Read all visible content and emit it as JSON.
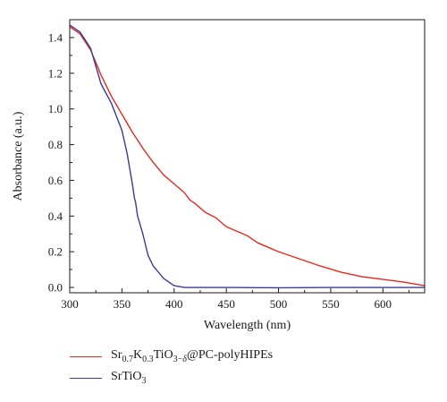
{
  "chart_data": {
    "type": "line",
    "xlabel": "Wavelength (nm)",
    "ylabel": "Absorbance (a.u.)",
    "xlim": [
      300,
      640
    ],
    "ylim": [
      -0.03,
      1.5
    ],
    "x_ticks": [
      300,
      350,
      400,
      450,
      500,
      550,
      600
    ],
    "x_tick_labels": [
      "300",
      "350",
      "400",
      "450",
      "500",
      "550",
      "600"
    ],
    "y_ticks": [
      0.0,
      0.2,
      0.4,
      0.6,
      0.8,
      1.0,
      1.2,
      1.4
    ],
    "y_tick_labels": [
      "0.0",
      "0.2",
      "0.4",
      "0.6",
      "0.8",
      "1.0",
      "1.2",
      "1.4"
    ],
    "legend_position": "below",
    "series": [
      {
        "name": "Sr0.7K0.3TiO3−δ@PC-polyHIPEs",
        "color": "#e8281e",
        "points": [
          [
            300,
            1.46
          ],
          [
            310,
            1.42
          ],
          [
            320,
            1.33
          ],
          [
            330,
            1.19
          ],
          [
            340,
            1.07
          ],
          [
            350,
            0.97
          ],
          [
            360,
            0.87
          ],
          [
            370,
            0.78
          ],
          [
            380,
            0.7
          ],
          [
            390,
            0.63
          ],
          [
            400,
            0.58
          ],
          [
            410,
            0.53
          ],
          [
            415,
            0.49
          ],
          [
            420,
            0.47
          ],
          [
            430,
            0.42
          ],
          [
            440,
            0.39
          ],
          [
            450,
            0.34
          ],
          [
            460,
            0.315
          ],
          [
            470,
            0.29
          ],
          [
            475,
            0.27
          ],
          [
            480,
            0.25
          ],
          [
            490,
            0.225
          ],
          [
            500,
            0.2
          ],
          [
            520,
            0.16
          ],
          [
            540,
            0.12
          ],
          [
            560,
            0.085
          ],
          [
            580,
            0.06
          ],
          [
            600,
            0.045
          ],
          [
            620,
            0.03
          ],
          [
            630,
            0.02
          ],
          [
            640,
            0.01
          ]
        ]
      },
      {
        "name": "SrTiO3",
        "color": "#3a3a9a",
        "points": [
          [
            300,
            1.47
          ],
          [
            310,
            1.43
          ],
          [
            320,
            1.34
          ],
          [
            330,
            1.14
          ],
          [
            340,
            1.03
          ],
          [
            350,
            0.88
          ],
          [
            355,
            0.75
          ],
          [
            360,
            0.58
          ],
          [
            362,
            0.5
          ],
          [
            363,
            0.48
          ],
          [
            365,
            0.4
          ],
          [
            370,
            0.3
          ],
          [
            375,
            0.18
          ],
          [
            380,
            0.12
          ],
          [
            390,
            0.05
          ],
          [
            400,
            0.01
          ],
          [
            410,
            0.0
          ],
          [
            450,
            0.0
          ],
          [
            500,
            -0.002
          ],
          [
            550,
            0.0
          ],
          [
            600,
            0.0
          ],
          [
            640,
            0.0
          ]
        ]
      }
    ]
  }
}
